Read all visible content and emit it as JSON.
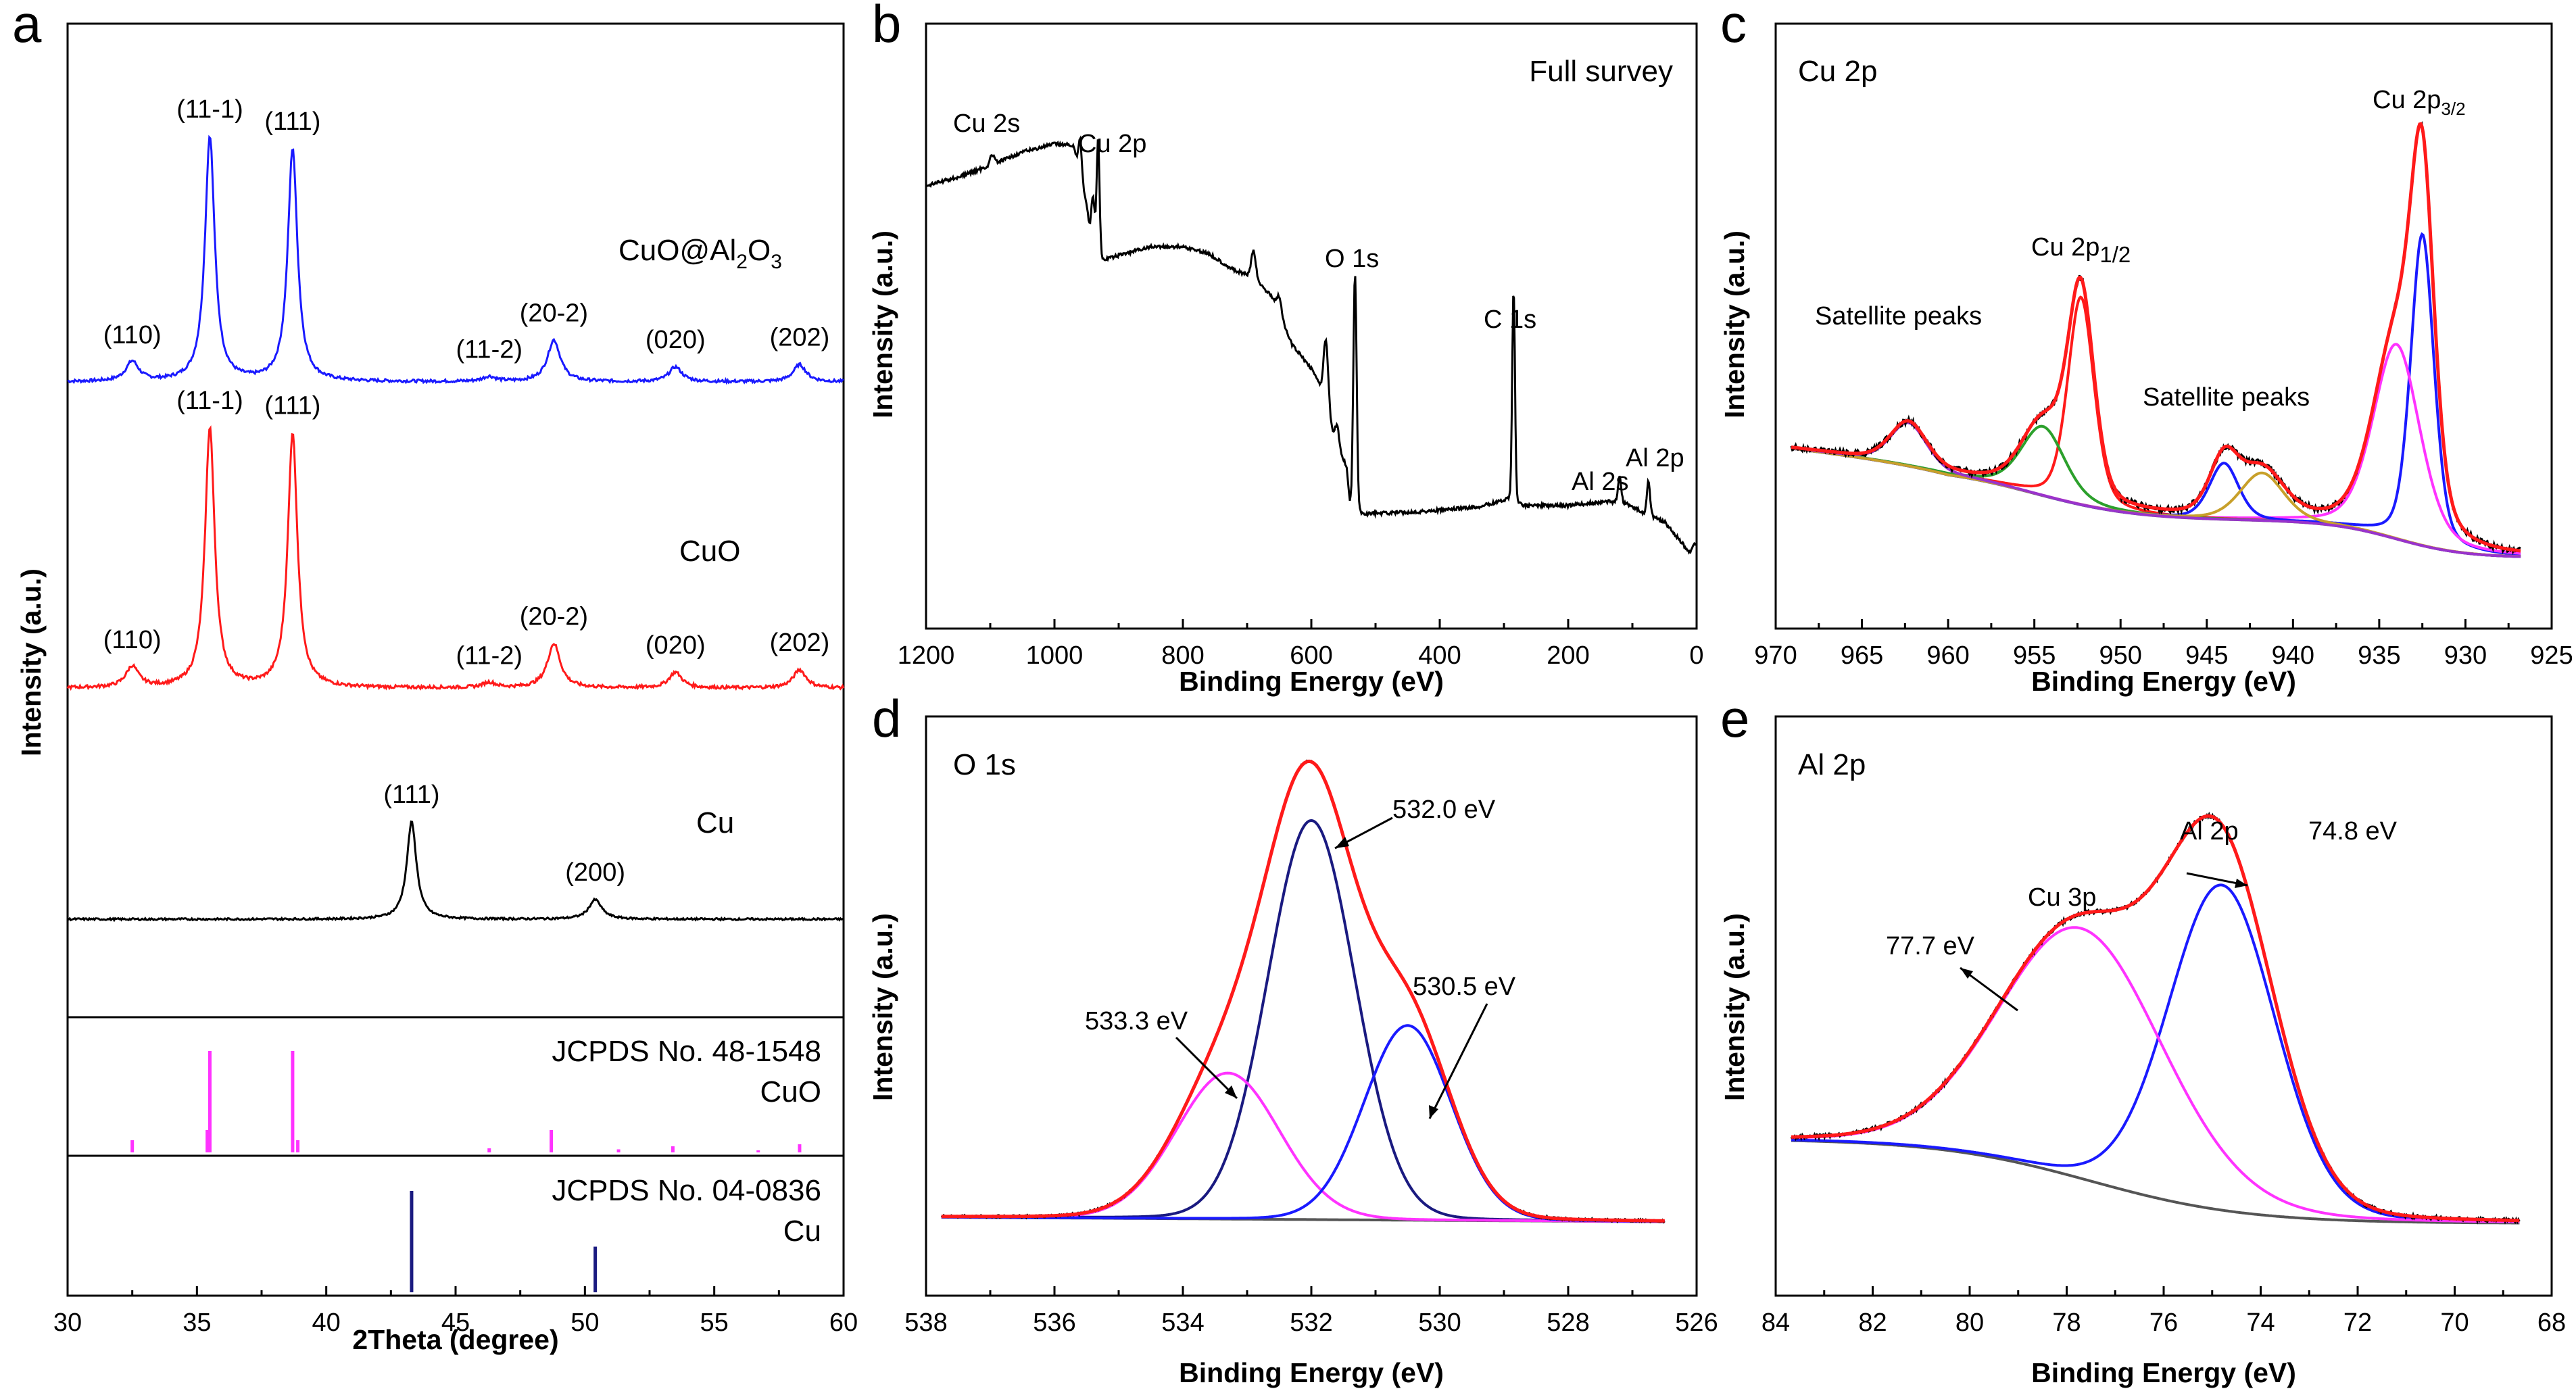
{
  "colors": {
    "blue": "#1a1aff",
    "red": "#ff1a1a",
    "black": "#000000",
    "magenta": "#ff33ff",
    "navy": "#1a1a80",
    "green": "#2ca02c",
    "purple": "#9933cc",
    "olive": "#c8a02a",
    "gray": "#555555"
  },
  "chart_data": [
    {
      "panel": "a",
      "type": "line",
      "xlabel": "2Theta (degree)",
      "ylabel": "Intensity (a.u.)",
      "xlim": [
        30,
        60
      ],
      "xticks": [
        "30",
        "35",
        "40",
        "45",
        "50",
        "55",
        "60"
      ],
      "series": [
        {
          "name": "CuO@Al2O3",
          "label_main": "CuO@Al",
          "label_sub1": "2",
          "label_mid": "O",
          "label_sub2": "3",
          "color": "#1a1aff",
          "peaks": [
            {
              "x": 32.5,
              "h": 0.08,
              "label": "(110)"
            },
            {
              "x": 35.5,
              "h": 1.0,
              "label": "(11-1)"
            },
            {
              "x": 38.7,
              "h": 0.95,
              "label": "(111)"
            },
            {
              "x": 46.3,
              "h": 0.02,
              "label": "(11-2)"
            },
            {
              "x": 48.8,
              "h": 0.17,
              "label": "(20-2)"
            },
            {
              "x": 53.5,
              "h": 0.06,
              "label": "(020)"
            },
            {
              "x": 58.3,
              "h": 0.07,
              "label": "(202)"
            }
          ]
        },
        {
          "name": "CuO",
          "label_main": "CuO",
          "color": "#ff1a1a",
          "peaks": [
            {
              "x": 32.5,
              "h": 0.08,
              "label": "(110)"
            },
            {
              "x": 35.5,
              "h": 1.0,
              "label": "(11-1)"
            },
            {
              "x": 38.7,
              "h": 0.98,
              "label": "(111)"
            },
            {
              "x": 46.3,
              "h": 0.02,
              "label": "(11-2)"
            },
            {
              "x": 48.8,
              "h": 0.17,
              "label": "(20-2)"
            },
            {
              "x": 53.5,
              "h": 0.06,
              "label": "(020)"
            },
            {
              "x": 58.3,
              "h": 0.07,
              "label": "(202)"
            }
          ]
        },
        {
          "name": "Cu",
          "label_main": "Cu",
          "color": "#000000",
          "peaks": [
            {
              "x": 43.3,
              "h": 0.6,
              "label": "(111)"
            },
            {
              "x": 50.4,
              "h": 0.12,
              "label": "(200)"
            }
          ]
        }
      ],
      "references": [
        {
          "name": "JCPDS No. 48-1548",
          "material": "CuO",
          "color": "#ff33ff",
          "lines": [
            [
              32.5,
              0.12
            ],
            [
              35.4,
              0.22
            ],
            [
              35.5,
              1.0
            ],
            [
              38.7,
              1.0
            ],
            [
              38.9,
              0.12
            ],
            [
              46.3,
              0.04
            ],
            [
              48.7,
              0.22
            ],
            [
              51.3,
              0.03
            ],
            [
              53.4,
              0.06
            ],
            [
              56.7,
              0.02
            ],
            [
              58.3,
              0.08
            ]
          ]
        },
        {
          "name": "JCPDS No. 04-0836",
          "material": "Cu",
          "color": "#1a1a80",
          "lines": [
            [
              43.3,
              1.0
            ],
            [
              50.4,
              0.45
            ]
          ]
        }
      ]
    },
    {
      "panel": "b",
      "type": "line",
      "title": "Full survey",
      "xlabel": "Binding Energy (eV)",
      "ylabel": "Intensity (a.u.)",
      "xlim": [
        1200,
        0
      ],
      "xticks": [
        "1200",
        "1000",
        "800",
        "600",
        "400",
        "200",
        "0"
      ],
      "peak_labels": [
        "Cu 2s",
        "Cu 2p",
        "O 1s",
        "C 1s",
        "Al 2s",
        "Al 2p"
      ]
    },
    {
      "panel": "c",
      "type": "line",
      "title": "Cu 2p",
      "xlabel": "Binding Energy (eV)",
      "ylabel": "Intensity (a.u.)",
      "xlim": [
        970,
        925
      ],
      "xticks": [
        "970",
        "965",
        "960",
        "955",
        "950",
        "945",
        "940",
        "935",
        "930",
        "925"
      ],
      "annotations": {
        "sat1": "Satellite peaks",
        "sat2": "Satellite peaks",
        "p12_main": "Cu 2p",
        "p12_sub": "1/2",
        "p32_main": "Cu 2p",
        "p32_sub": "3/2"
      },
      "components": [
        {
          "center": 932.5,
          "height": 0.72,
          "fwhm": 1.6,
          "color": "#1a1aff"
        },
        {
          "center": 934.0,
          "height": 0.45,
          "fwhm": 3.2,
          "color": "#ff33ff"
        },
        {
          "center": 952.3,
          "height": 0.48,
          "fwhm": 1.8,
          "color": "#ff1a1a"
        },
        {
          "center": 954.5,
          "height": 0.16,
          "fwhm": 3.0,
          "color": "#2ca02c"
        },
        {
          "center": 944.0,
          "height": 0.13,
          "fwhm": 2.0,
          "color": "#1a1aff"
        },
        {
          "center": 941.8,
          "height": 0.11,
          "fwhm": 3.0,
          "color": "#c8a02a"
        },
        {
          "center": 962.3,
          "height": 0.1,
          "fwhm": 2.5,
          "color": "#9933cc"
        }
      ]
    },
    {
      "panel": "d",
      "type": "line",
      "title": "O 1s",
      "xlabel": "Binding Energy (eV)",
      "ylabel": "Intensity (a.u.)",
      "xlim": [
        538,
        526
      ],
      "xticks": [
        "538",
        "536",
        "534",
        "532",
        "530",
        "528",
        "526"
      ],
      "components": [
        {
          "center": 532.0,
          "height": 0.82,
          "fwhm": 1.6,
          "color": "#1a1a80",
          "label": "532.0 eV"
        },
        {
          "center": 533.3,
          "height": 0.3,
          "fwhm": 1.9,
          "color": "#ff33ff",
          "label": "533.3 eV"
        },
        {
          "center": 530.5,
          "height": 0.4,
          "fwhm": 1.6,
          "color": "#1a1aff",
          "label": "530.5 eV"
        }
      ]
    },
    {
      "panel": "e",
      "type": "line",
      "title": "Al 2p",
      "xlabel": "Binding Energy (eV)",
      "ylabel": "Intensity (a.u.)",
      "xlim": [
        84,
        68
      ],
      "xticks": [
        "84",
        "82",
        "80",
        "78",
        "76",
        "74",
        "72",
        "70",
        "68"
      ],
      "components": [
        {
          "center": 74.8,
          "height": 0.65,
          "fwhm": 2.6,
          "color": "#1a1aff",
          "name": "Al 2p",
          "label": "74.8 eV"
        },
        {
          "center": 77.7,
          "height": 0.5,
          "fwhm": 4.0,
          "color": "#ff33ff",
          "name": "Cu 3p",
          "label": "77.7 eV"
        }
      ]
    }
  ]
}
